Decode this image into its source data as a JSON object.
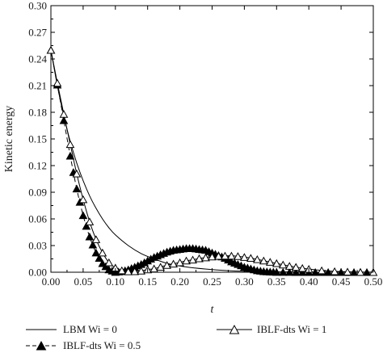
{
  "chart_data": {
    "type": "line",
    "xlabel": "t",
    "ylabel": "Kinetic energy",
    "xlim": [
      0,
      0.5
    ],
    "ylim": [
      0,
      0.3
    ],
    "x_ticks": [
      "0.00",
      "0.05",
      "0.10",
      "0.15",
      "0.20",
      "0.25",
      "0.30",
      "0.35",
      "0.40",
      "0.45",
      "0.50"
    ],
    "y_ticks": [
      "0.00",
      "0.03",
      "0.06",
      "0.09",
      "0.12",
      "0.15",
      "0.18",
      "0.21",
      "0.24",
      "0.27",
      "0.30"
    ],
    "grid": false,
    "legend_placement": "below-plot",
    "series": [
      {
        "name": "LBM Wi = 0",
        "style": "line",
        "marker": "none",
        "color": "#000000",
        "x": [
          0.0,
          0.01,
          0.02,
          0.03,
          0.04,
          0.05,
          0.06,
          0.07,
          0.08,
          0.09,
          0.1,
          0.12,
          0.14,
          0.16,
          0.18,
          0.2,
          0.22,
          0.25,
          0.28,
          0.31,
          0.35,
          0.4,
          0.45,
          0.5
        ],
        "y": [
          0.25,
          0.21,
          0.176,
          0.147,
          0.123,
          0.103,
          0.086,
          0.072,
          0.06,
          0.05,
          0.042,
          0.03,
          0.021,
          0.015,
          0.01,
          0.007,
          0.005,
          0.003,
          0.0016,
          0.0009,
          0.0004,
          0.0001,
          0.0,
          0.0
        ]
      },
      {
        "name": "IBLF-dts Wi = 0.5",
        "style": "dashed",
        "marker": "filled-triangle",
        "color": "#000000",
        "x": [
          0.0,
          0.01,
          0.02,
          0.03,
          0.04,
          0.05,
          0.06,
          0.07,
          0.08,
          0.09,
          0.1,
          0.11,
          0.12,
          0.13,
          0.14,
          0.15,
          0.16,
          0.17,
          0.18,
          0.19,
          0.2,
          0.21,
          0.22,
          0.23,
          0.24,
          0.25,
          0.26,
          0.27,
          0.28,
          0.29,
          0.3,
          0.31,
          0.32,
          0.33,
          0.34,
          0.35,
          0.4,
          0.45,
          0.5
        ],
        "y": [
          0.25,
          0.211,
          0.171,
          0.131,
          0.094,
          0.064,
          0.04,
          0.022,
          0.01,
          0.003,
          0.0002,
          0.001,
          0.003,
          0.006,
          0.009,
          0.013,
          0.017,
          0.02,
          0.023,
          0.025,
          0.026,
          0.027,
          0.027,
          0.026,
          0.025,
          0.022,
          0.019,
          0.016,
          0.012,
          0.009,
          0.006,
          0.004,
          0.002,
          0.001,
          0.0005,
          0.0002,
          0.0,
          0.0,
          0.0
        ],
        "marker_x": [
          0.0,
          0.01,
          0.02,
          0.03,
          0.035,
          0.04,
          0.045,
          0.05,
          0.055,
          0.06,
          0.065,
          0.07,
          0.075,
          0.08,
          0.085,
          0.09,
          0.095,
          0.1,
          0.105,
          0.11,
          0.115,
          0.12,
          0.125,
          0.13,
          0.135,
          0.14,
          0.145,
          0.15,
          0.155,
          0.16,
          0.165,
          0.17,
          0.175,
          0.18,
          0.185,
          0.19,
          0.195,
          0.2,
          0.205,
          0.21,
          0.215,
          0.22,
          0.225,
          0.23,
          0.235,
          0.24,
          0.245,
          0.25,
          0.255,
          0.26,
          0.265,
          0.27,
          0.275,
          0.28,
          0.285,
          0.29,
          0.295,
          0.3,
          0.305,
          0.31,
          0.315,
          0.32,
          0.325,
          0.33,
          0.335,
          0.34,
          0.345,
          0.35,
          0.36,
          0.37,
          0.38,
          0.39,
          0.4,
          0.41,
          0.42,
          0.43,
          0.44,
          0.45,
          0.46,
          0.47,
          0.48,
          0.49
        ]
      },
      {
        "name": "IBLF-dts Wi = 1",
        "style": "solid",
        "marker": "open-triangle",
        "color": "#000000",
        "x": [
          0.0,
          0.01,
          0.02,
          0.03,
          0.04,
          0.05,
          0.06,
          0.07,
          0.08,
          0.09,
          0.1,
          0.11,
          0.12,
          0.13,
          0.14,
          0.15,
          0.16,
          0.17,
          0.18,
          0.19,
          0.2,
          0.21,
          0.22,
          0.23,
          0.24,
          0.25,
          0.26,
          0.27,
          0.28,
          0.29,
          0.3,
          0.31,
          0.32,
          0.33,
          0.34,
          0.35,
          0.36,
          0.37,
          0.38,
          0.39,
          0.4,
          0.42,
          0.44,
          0.46,
          0.48,
          0.5
        ],
        "y": [
          0.25,
          0.213,
          0.178,
          0.144,
          0.111,
          0.082,
          0.057,
          0.037,
          0.022,
          0.011,
          0.005,
          0.002,
          0.0008,
          0.001,
          0.0016,
          0.003,
          0.004,
          0.006,
          0.008,
          0.0095,
          0.011,
          0.013,
          0.014,
          0.0155,
          0.0165,
          0.0175,
          0.0182,
          0.0185,
          0.0185,
          0.018,
          0.017,
          0.016,
          0.0145,
          0.013,
          0.0115,
          0.01,
          0.0085,
          0.007,
          0.0058,
          0.0046,
          0.0036,
          0.002,
          0.001,
          0.0005,
          0.0002,
          0.0001
        ]
      }
    ],
    "legend": [
      {
        "label": "LBM Wi = 0"
      },
      {
        "label": "IBLF-dts Wi = 0.5"
      },
      {
        "label": "IBLF-dts Wi = 1"
      }
    ]
  }
}
